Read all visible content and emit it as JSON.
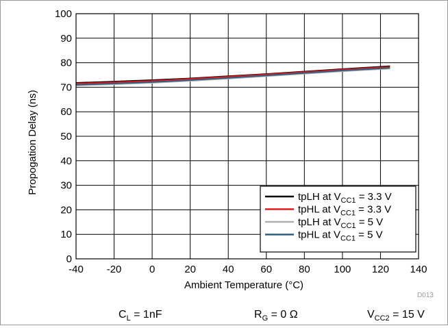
{
  "chart_data": {
    "type": "line",
    "xlabel": "Ambient Temperature (°C)",
    "ylabel": "Propogation Delay (ns)",
    "xlim": [
      -40,
      140
    ],
    "ylim": [
      0,
      100
    ],
    "xticks": [
      -40,
      -20,
      0,
      20,
      40,
      60,
      80,
      100,
      120,
      140
    ],
    "yticks": [
      0,
      10,
      20,
      30,
      40,
      50,
      60,
      70,
      80,
      90,
      100
    ],
    "grid": true,
    "legend_position": "bottom-right",
    "series": [
      {
        "name": "tpLH at VCC1 = 3.3 V",
        "legend_parts": {
          "a": "tpLH at V",
          "sub": "CC1",
          "b": " = 3.3 V"
        },
        "color": "#000000",
        "x": [
          -40,
          -20,
          0,
          20,
          40,
          60,
          80,
          100,
          125
        ],
        "y": [
          71.8,
          72.3,
          72.9,
          73.6,
          74.5,
          75.4,
          76.4,
          77.4,
          78.6
        ]
      },
      {
        "name": "tpHL at VCC1 = 3.3 V",
        "legend_parts": {
          "a": "tpHL at V",
          "sub": "CC1",
          "b": " = 3.3 V"
        },
        "color": "#e8191b",
        "x": [
          -40,
          -20,
          0,
          20,
          40,
          60,
          80,
          100,
          125
        ],
        "y": [
          71.5,
          72.0,
          72.6,
          73.4,
          74.3,
          75.2,
          76.2,
          77.2,
          78.3
        ]
      },
      {
        "name": "tpLH at VCC1 = 5 V",
        "legend_parts": {
          "a": "tpLH at V",
          "sub": "CC1",
          "b": " = 5 V"
        },
        "color": "#b0b0b0",
        "x": [
          -40,
          -20,
          0,
          20,
          40,
          60,
          80,
          100,
          125
        ],
        "y": [
          70.7,
          71.2,
          71.8,
          72.6,
          73.5,
          74.5,
          75.5,
          76.5,
          77.6
        ]
      },
      {
        "name": "tpHL at VCC1 = 5 V",
        "legend_parts": {
          "a": "tpHL at V",
          "sub": "CC1",
          "b": " = 5 V"
        },
        "color": "#2e5d80",
        "x": [
          -40,
          -20,
          0,
          20,
          40,
          60,
          80,
          100,
          125
        ],
        "y": [
          71.0,
          71.5,
          72.1,
          72.9,
          73.8,
          74.8,
          75.8,
          76.8,
          77.9
        ]
      }
    ]
  },
  "conditions": {
    "cl": {
      "a": "C",
      "sub": "L",
      "b": " = 1nF"
    },
    "rg": {
      "a": "R",
      "sub": "G",
      "b": " = 0 Ω"
    },
    "vcc2": {
      "a": "V",
      "sub": "CC2",
      "b": " = 15 V"
    }
  },
  "figure_code": "D013"
}
